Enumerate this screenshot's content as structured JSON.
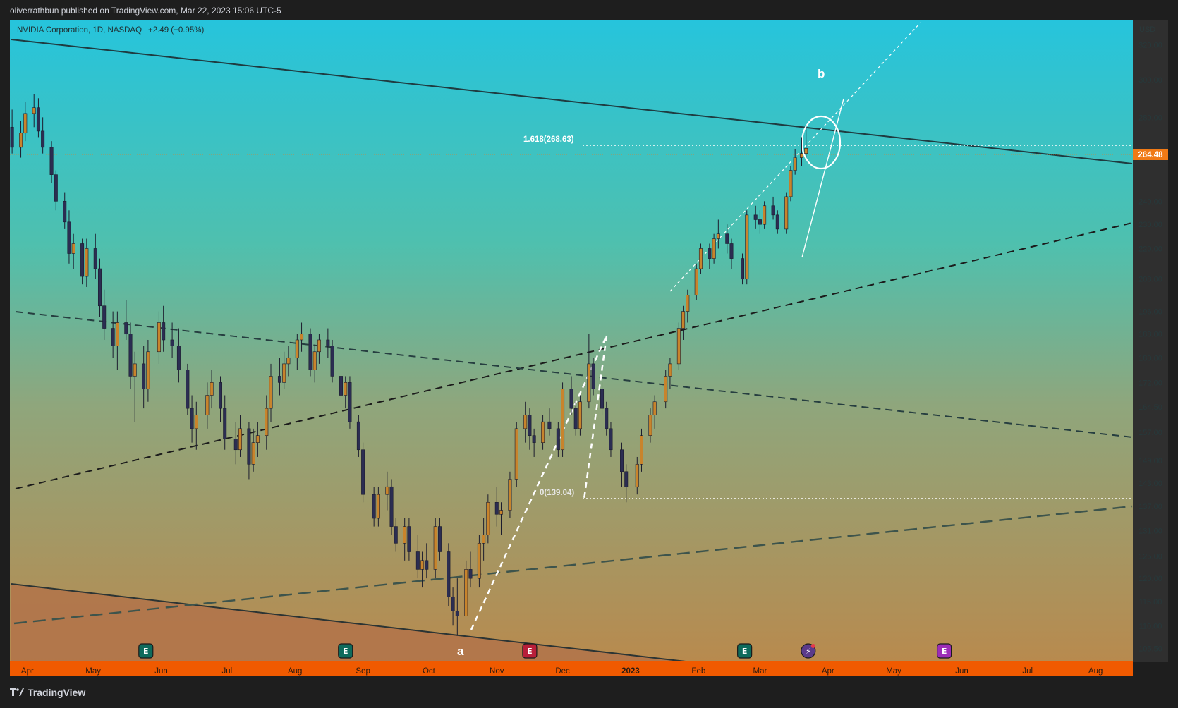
{
  "header": {
    "published_by": "oliverrathbun published on TradingView.com, Mar 22, 2023 15:06 UTC-5"
  },
  "footer": {
    "brand": "TradingView"
  },
  "colors": {
    "up_candle": "#c8842c",
    "down_candle": "#2b2d52",
    "time_axis_bg": "#f05a00",
    "price_tag_bg": "#f07a16",
    "gradient_top": "#26c4dc",
    "gradient_mid": "#8fa67c",
    "gradient_bottom": "#b88a4e"
  },
  "chart_data": {
    "type": "candlestick",
    "symbol_label": "NVIDIA Corporation, 1D, NASDAQ",
    "change_label": "+2.49 (+0.95%)",
    "currency": "USD",
    "scale": "log",
    "grid": false,
    "last_price": 264.48,
    "last_price_label": "264.48",
    "y_ticks": [
      "320.00",
      "300.00",
      "280.00",
      "260.00",
      "240.00",
      "230.00",
      "220.00",
      "208.00",
      "196.00",
      "188.00",
      "180.00",
      "172.00",
      "164.50",
      "157.00",
      "149.00",
      "143.00",
      "137.00",
      "131.00",
      "125.00",
      "120.00",
      "115.00",
      "110.00",
      "105.50"
    ],
    "x_ticks": [
      "Apr",
      "May",
      "Jun",
      "Jul",
      "Aug",
      "Sep",
      "Oct",
      "Nov",
      "Dec",
      "2023",
      "Feb",
      "Mar",
      "Apr",
      "May",
      "Jun",
      "Jul",
      "Aug"
    ],
    "x_range": [
      "2022-03-24",
      "2023-08-18"
    ],
    "y_range": [
      103,
      335
    ],
    "candles": [
      [
        "2022-03-25",
        275,
        284,
        262,
        265
      ],
      [
        "2022-03-29",
        265,
        278,
        260,
        272
      ],
      [
        "2022-03-31",
        272,
        288,
        268,
        282
      ],
      [
        "2022-04-04",
        282,
        292,
        275,
        285
      ],
      [
        "2022-04-06",
        285,
        290,
        270,
        273
      ],
      [
        "2022-04-08",
        273,
        280,
        262,
        265
      ],
      [
        "2022-04-12",
        265,
        268,
        248,
        252
      ],
      [
        "2022-04-14",
        252,
        254,
        236,
        240
      ],
      [
        "2022-04-18",
        240,
        244,
        228,
        231
      ],
      [
        "2022-04-20",
        231,
        236,
        214,
        218
      ],
      [
        "2022-04-22",
        218,
        226,
        212,
        222
      ],
      [
        "2022-04-26",
        222,
        224,
        206,
        209
      ],
      [
        "2022-04-28",
        209,
        224,
        205,
        220
      ],
      [
        "2022-05-02",
        220,
        226,
        208,
        212
      ],
      [
        "2022-05-04",
        212,
        216,
        194,
        198
      ],
      [
        "2022-05-06",
        198,
        204,
        186,
        190
      ],
      [
        "2022-05-10",
        190,
        196,
        180,
        184
      ],
      [
        "2022-05-12",
        184,
        196,
        176,
        192
      ],
      [
        "2022-05-16",
        192,
        200,
        186,
        188
      ],
      [
        "2022-05-18",
        188,
        192,
        170,
        174
      ],
      [
        "2022-05-20",
        174,
        182,
        160,
        178
      ],
      [
        "2022-05-24",
        178,
        184,
        164,
        170
      ],
      [
        "2022-05-26",
        170,
        186,
        166,
        182
      ],
      [
        "2022-05-31",
        182,
        196,
        178,
        192
      ],
      [
        "2022-06-02",
        192,
        198,
        182,
        186
      ],
      [
        "2022-06-06",
        186,
        192,
        180,
        184
      ],
      [
        "2022-06-09",
        184,
        190,
        172,
        176
      ],
      [
        "2022-06-13",
        176,
        178,
        162,
        164
      ],
      [
        "2022-06-15",
        164,
        168,
        154,
        158
      ],
      [
        "2022-06-17",
        158,
        166,
        152,
        162
      ],
      [
        "2022-06-22",
        162,
        172,
        158,
        168
      ],
      [
        "2022-06-24",
        168,
        176,
        164,
        172
      ],
      [
        "2022-06-28",
        172,
        174,
        160,
        164
      ],
      [
        "2022-06-30",
        164,
        168,
        152,
        155
      ],
      [
        "2022-07-05",
        155,
        160,
        148,
        152
      ],
      [
        "2022-07-07",
        152,
        162,
        150,
        158
      ],
      [
        "2022-07-11",
        158,
        160,
        144,
        148
      ],
      [
        "2022-07-13",
        148,
        158,
        146,
        154
      ],
      [
        "2022-07-15",
        154,
        160,
        150,
        156
      ],
      [
        "2022-07-19",
        156,
        168,
        152,
        164
      ],
      [
        "2022-07-21",
        164,
        178,
        160,
        174
      ],
      [
        "2022-07-25",
        174,
        180,
        168,
        172
      ],
      [
        "2022-07-27",
        172,
        182,
        170,
        178
      ],
      [
        "2022-07-29",
        178,
        184,
        174,
        180
      ],
      [
        "2022-08-02",
        180,
        188,
        176,
        186
      ],
      [
        "2022-08-04",
        186,
        192,
        182,
        188
      ],
      [
        "2022-08-08",
        188,
        190,
        174,
        176
      ],
      [
        "2022-08-10",
        176,
        184,
        172,
        182
      ],
      [
        "2022-08-12",
        182,
        188,
        178,
        186
      ],
      [
        "2022-08-16",
        186,
        190,
        180,
        184
      ],
      [
        "2022-08-18",
        184,
        186,
        172,
        174
      ],
      [
        "2022-08-22",
        174,
        178,
        166,
        168
      ],
      [
        "2022-08-24",
        168,
        174,
        164,
        172
      ],
      [
        "2022-08-26",
        172,
        174,
        158,
        160
      ],
      [
        "2022-08-30",
        160,
        162,
        150,
        152
      ],
      [
        "2022-09-01",
        152,
        154,
        138,
        140
      ],
      [
        "2022-09-06",
        140,
        142,
        132,
        134
      ],
      [
        "2022-09-08",
        134,
        142,
        132,
        140
      ],
      [
        "2022-09-12",
        140,
        146,
        136,
        142
      ],
      [
        "2022-09-14",
        142,
        144,
        130,
        132
      ],
      [
        "2022-09-16",
        132,
        134,
        126,
        128
      ],
      [
        "2022-09-20",
        128,
        134,
        124,
        132
      ],
      [
        "2022-09-22",
        132,
        134,
        124,
        126
      ],
      [
        "2022-09-26",
        126,
        130,
        120,
        122
      ],
      [
        "2022-09-28",
        122,
        126,
        118,
        124
      ],
      [
        "2022-09-30",
        124,
        128,
        120,
        122
      ],
      [
        "2022-10-04",
        122,
        134,
        120,
        132
      ],
      [
        "2022-10-06",
        132,
        134,
        124,
        126
      ],
      [
        "2022-10-10",
        126,
        128,
        114,
        116
      ],
      [
        "2022-10-12",
        116,
        118,
        110,
        113
      ],
      [
        "2022-10-14",
        113,
        120,
        108,
        112
      ],
      [
        "2022-10-18",
        112,
        124,
        112,
        122
      ],
      [
        "2022-10-20",
        122,
        126,
        118,
        120
      ],
      [
        "2022-10-24",
        120,
        130,
        118,
        128
      ],
      [
        "2022-10-26",
        128,
        134,
        124,
        130
      ],
      [
        "2022-10-28",
        130,
        140,
        128,
        138
      ],
      [
        "2022-11-01",
        138,
        142,
        132,
        135
      ],
      [
        "2022-11-03",
        135,
        138,
        130,
        136
      ],
      [
        "2022-11-07",
        136,
        146,
        134,
        144
      ],
      [
        "2022-11-10",
        144,
        160,
        142,
        158
      ],
      [
        "2022-11-14",
        158,
        166,
        154,
        162
      ],
      [
        "2022-11-16",
        162,
        164,
        152,
        156
      ],
      [
        "2022-11-18",
        156,
        158,
        150,
        154
      ],
      [
        "2022-11-22",
        154,
        162,
        152,
        160
      ],
      [
        "2022-11-25",
        160,
        164,
        156,
        158
      ],
      [
        "2022-11-29",
        158,
        160,
        150,
        152
      ],
      [
        "2022-12-01",
        152,
        172,
        150,
        170
      ],
      [
        "2022-12-05",
        170,
        174,
        162,
        164
      ],
      [
        "2022-12-07",
        164,
        166,
        156,
        158
      ],
      [
        "2022-12-09",
        158,
        168,
        156,
        166
      ],
      [
        "2022-12-13",
        166,
        188,
        164,
        178
      ],
      [
        "2022-12-15",
        178,
        180,
        168,
        170
      ],
      [
        "2022-12-19",
        170,
        172,
        162,
        164
      ],
      [
        "2022-12-21",
        164,
        166,
        156,
        158
      ],
      [
        "2022-12-23",
        158,
        160,
        150,
        152
      ],
      [
        "2022-12-28",
        152,
        154,
        142,
        146
      ],
      [
        "2022-12-30",
        146,
        148,
        138,
        142
      ],
      [
        "2023-01-04",
        142,
        150,
        140,
        148
      ],
      [
        "2023-01-06",
        148,
        158,
        146,
        156
      ],
      [
        "2023-01-10",
        156,
        164,
        154,
        162
      ],
      [
        "2023-01-12",
        162,
        168,
        158,
        166
      ],
      [
        "2023-01-17",
        166,
        176,
        164,
        174
      ],
      [
        "2023-01-19",
        174,
        180,
        170,
        178
      ],
      [
        "2023-01-23",
        178,
        192,
        176,
        190
      ],
      [
        "2023-01-25",
        190,
        198,
        186,
        196
      ],
      [
        "2023-01-27",
        196,
        204,
        192,
        202
      ],
      [
        "2023-01-31",
        202,
        214,
        200,
        212
      ],
      [
        "2023-02-02",
        212,
        222,
        210,
        220
      ],
      [
        "2023-02-06",
        220,
        222,
        212,
        216
      ],
      [
        "2023-02-08",
        216,
        226,
        214,
        224
      ],
      [
        "2023-02-10",
        224,
        232,
        220,
        226
      ],
      [
        "2023-02-14",
        226,
        230,
        218,
        222
      ],
      [
        "2023-02-16",
        222,
        224,
        212,
        216
      ],
      [
        "2023-02-21",
        216,
        218,
        206,
        208
      ],
      [
        "2023-02-23",
        208,
        236,
        206,
        234
      ],
      [
        "2023-02-27",
        234,
        238,
        228,
        232
      ],
      [
        "2023-03-01",
        232,
        236,
        226,
        230
      ],
      [
        "2023-03-03",
        230,
        240,
        228,
        238
      ],
      [
        "2023-03-07",
        238,
        242,
        232,
        234
      ],
      [
        "2023-03-09",
        234,
        236,
        226,
        228
      ],
      [
        "2023-03-13",
        228,
        244,
        226,
        242
      ],
      [
        "2023-03-15",
        242,
        256,
        240,
        254
      ],
      [
        "2023-03-17",
        254,
        264,
        252,
        260
      ],
      [
        "2023-03-20",
        260,
        270,
        256,
        262
      ],
      [
        "2023-03-22",
        262,
        276,
        260,
        264.48
      ]
    ],
    "drawings": {
      "fib_upper_label": "1.618(268.63)",
      "fib_upper_price": 268.63,
      "fib_lower_label": "0(139.04)",
      "fib_lower_price": 139.04,
      "wave_label_b": "b",
      "wave_label_a": "a"
    },
    "events": [
      {
        "date": "2022-05-25",
        "type": "earnings",
        "label": "E"
      },
      {
        "date": "2022-08-24",
        "type": "earnings",
        "label": "E"
      },
      {
        "date": "2022-11-16",
        "type": "earnings",
        "label": "E"
      },
      {
        "date": "2023-02-22",
        "type": "earnings",
        "label": "E"
      },
      {
        "date": "2023-03-23",
        "type": "event",
        "label": "⚡"
      },
      {
        "date": "2023-05-24",
        "type": "earnings",
        "label": "E"
      }
    ]
  }
}
